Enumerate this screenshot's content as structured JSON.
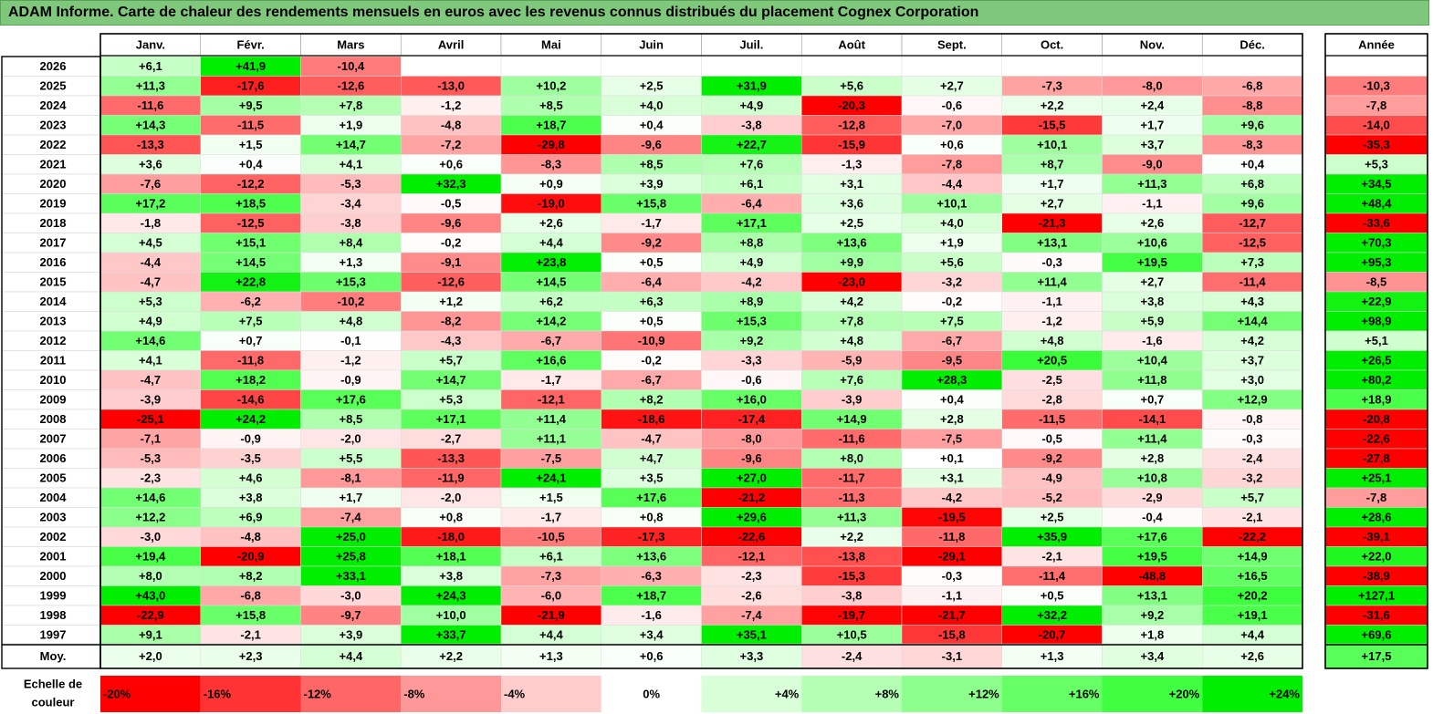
{
  "title": "ADAM Informe. Carte de chaleur des rendements mensuels en euros avec les revenus connus distribués du placement Cognex Corporation",
  "chart_data": {
    "type": "heatmap",
    "title": "ADAM Informe. Carte de chaleur des rendements mensuels en euros avec les revenus connus distribués du placement Cognex Corporation",
    "columns": [
      "Janv.",
      "Févr.",
      "Mars",
      "Avril",
      "Mai",
      "Juin",
      "Juil.",
      "Août",
      "Sept.",
      "Oct.",
      "Nov.",
      "Déc."
    ],
    "year_column_label": "Année",
    "rows": [
      {
        "label": "2026",
        "values": [
          "+6,1",
          "+41,9",
          "-10,4",
          "",
          "",
          "",
          "",
          "",
          "",
          "",
          "",
          ""
        ],
        "year": ""
      },
      {
        "label": "2025",
        "values": [
          "+11,3",
          "-17,6",
          "-12,6",
          "-13,0",
          "+10,2",
          "+2,5",
          "+31,9",
          "+5,6",
          "+2,7",
          "-7,3",
          "-8,0",
          "-6,8"
        ],
        "year": "-10,3"
      },
      {
        "label": "2024",
        "values": [
          "-11,6",
          "+9,5",
          "+7,8",
          "-1,2",
          "+8,5",
          "+4,0",
          "+4,9",
          "-20,3",
          "-0,6",
          "+2,2",
          "+2,4",
          "-8,8"
        ],
        "year": "-7,8"
      },
      {
        "label": "2023",
        "values": [
          "+14,3",
          "-11,5",
          "+1,9",
          "-4,8",
          "+18,7",
          "+0,4",
          "-3,8",
          "-12,8",
          "-7,0",
          "-15,5",
          "+1,7",
          "+9,6"
        ],
        "year": "-14,0"
      },
      {
        "label": "2022",
        "values": [
          "-13,3",
          "+1,5",
          "+14,7",
          "-7,2",
          "-29,8",
          "-9,6",
          "+22,7",
          "-15,9",
          "+0,6",
          "+10,1",
          "+3,7",
          "-8,3"
        ],
        "year": "-35,3"
      },
      {
        "label": "2021",
        "values": [
          "+3,6",
          "+0,4",
          "+4,1",
          "+0,6",
          "-8,3",
          "+8,5",
          "+7,6",
          "-1,3",
          "-7,8",
          "+8,7",
          "-9,0",
          "+0,4"
        ],
        "year": "+5,3"
      },
      {
        "label": "2020",
        "values": [
          "-7,6",
          "-12,2",
          "-5,3",
          "+32,3",
          "+0,9",
          "+3,9",
          "+6,1",
          "+3,1",
          "-4,4",
          "+1,7",
          "+11,3",
          "+6,8"
        ],
        "year": "+34,5"
      },
      {
        "label": "2019",
        "values": [
          "+17,2",
          "+18,5",
          "-3,4",
          "-0,5",
          "-19,0",
          "+15,8",
          "-6,4",
          "+3,6",
          "+10,1",
          "+2,7",
          "-1,1",
          "+9,6"
        ],
        "year": "+48,4"
      },
      {
        "label": "2018",
        "values": [
          "-1,8",
          "-12,5",
          "-3,8",
          "-9,6",
          "+2,6",
          "-1,7",
          "+17,1",
          "+2,5",
          "+4,0",
          "-21,3",
          "+2,6",
          "-12,7"
        ],
        "year": "-33,6"
      },
      {
        "label": "2017",
        "values": [
          "+4,5",
          "+15,1",
          "+8,4",
          "-0,2",
          "+4,4",
          "-9,2",
          "+8,8",
          "+13,6",
          "+1,9",
          "+13,1",
          "+10,6",
          "-12,5"
        ],
        "year": "+70,3"
      },
      {
        "label": "2016",
        "values": [
          "-4,4",
          "+14,5",
          "+1,3",
          "-9,1",
          "+23,8",
          "+0,5",
          "+4,9",
          "+9,9",
          "+5,6",
          "-0,3",
          "+19,5",
          "+7,3"
        ],
        "year": "+95,3"
      },
      {
        "label": "2015",
        "values": [
          "-4,7",
          "+22,8",
          "+15,3",
          "-12,6",
          "+14,5",
          "-6,4",
          "-4,2",
          "-23,0",
          "-3,2",
          "+11,4",
          "+2,7",
          "-11,4"
        ],
        "year": "-8,5"
      },
      {
        "label": "2014",
        "values": [
          "+5,3",
          "-6,2",
          "-10,2",
          "+1,2",
          "+6,2",
          "+6,3",
          "+8,9",
          "+4,2",
          "-0,2",
          "-1,1",
          "+3,8",
          "+4,3"
        ],
        "year": "+22,9"
      },
      {
        "label": "2013",
        "values": [
          "+4,9",
          "+7,5",
          "+4,8",
          "-8,2",
          "+14,2",
          "+0,5",
          "+15,3",
          "+7,8",
          "+7,5",
          "-1,2",
          "+5,9",
          "+14,4"
        ],
        "year": "+98,9"
      },
      {
        "label": "2012",
        "values": [
          "+14,6",
          "+0,7",
          "-0,1",
          "-4,3",
          "-6,7",
          "-10,9",
          "+9,2",
          "+4,8",
          "-6,7",
          "+4,8",
          "-1,6",
          "+4,2"
        ],
        "year": "+5,1"
      },
      {
        "label": "2011",
        "values": [
          "+4,1",
          "-11,8",
          "-1,2",
          "+5,7",
          "+16,6",
          "-0,2",
          "-3,3",
          "-5,9",
          "-9,5",
          "+20,5",
          "+10,4",
          "+3,7"
        ],
        "year": "+26,5"
      },
      {
        "label": "2010",
        "values": [
          "-4,7",
          "+18,2",
          "-0,9",
          "+14,7",
          "-1,7",
          "-6,7",
          "-0,6",
          "+7,6",
          "+28,3",
          "-2,5",
          "+11,8",
          "+3,0"
        ],
        "year": "+80,2"
      },
      {
        "label": "2009",
        "values": [
          "-3,9",
          "-14,6",
          "+17,6",
          "+5,3",
          "-12,1",
          "+8,2",
          "+16,0",
          "-3,9",
          "+0,4",
          "-2,8",
          "+0,7",
          "+12,9"
        ],
        "year": "+18,9"
      },
      {
        "label": "2008",
        "values": [
          "-25,1",
          "+24,2",
          "+8,5",
          "+17,1",
          "+11,4",
          "-18,6",
          "-17,4",
          "+14,9",
          "+2,8",
          "-11,5",
          "-14,1",
          "-0,8"
        ],
        "year": "-20,8"
      },
      {
        "label": "2007",
        "values": [
          "-7,1",
          "-0,9",
          "-2,0",
          "-2,7",
          "+11,1",
          "-4,7",
          "-8,0",
          "-11,6",
          "-7,5",
          "-0,5",
          "+11,4",
          "-0,3"
        ],
        "year": "-22,6"
      },
      {
        "label": "2006",
        "values": [
          "-5,3",
          "-3,5",
          "+5,5",
          "-13,3",
          "-7,5",
          "+4,7",
          "-9,6",
          "+8,0",
          "+0,1",
          "-9,2",
          "+2,8",
          "-2,4"
        ],
        "year": "-27,8"
      },
      {
        "label": "2005",
        "values": [
          "-2,3",
          "+4,6",
          "-8,1",
          "-11,9",
          "+24,1",
          "+3,5",
          "+27,0",
          "-11,7",
          "+3,1",
          "-4,9",
          "+10,8",
          "-3,2"
        ],
        "year": "+25,1"
      },
      {
        "label": "2004",
        "values": [
          "+14,6",
          "+3,8",
          "+1,7",
          "-2,0",
          "+1,5",
          "+17,6",
          "-21,2",
          "-11,3",
          "-4,2",
          "-5,2",
          "-2,9",
          "+5,7"
        ],
        "year": "-7,8"
      },
      {
        "label": "2003",
        "values": [
          "+12,2",
          "+6,9",
          "-7,4",
          "+0,8",
          "-1,7",
          "+0,8",
          "+29,6",
          "+11,3",
          "-19,5",
          "+2,5",
          "-0,4",
          "-2,1"
        ],
        "year": "+28,6"
      },
      {
        "label": "2002",
        "values": [
          "-3,0",
          "-4,8",
          "+25,0",
          "-18,0",
          "-10,5",
          "-17,3",
          "-22,6",
          "+2,2",
          "-11,8",
          "+35,9",
          "+17,6",
          "-22,2"
        ],
        "year": "-39,1"
      },
      {
        "label": "2001",
        "values": [
          "+19,4",
          "-20,9",
          "+25,8",
          "+18,1",
          "+6,1",
          "+13,6",
          "-12,1",
          "-13,8",
          "-29,1",
          "-2,1",
          "+19,5",
          "+14,9"
        ],
        "year": "+22,0"
      },
      {
        "label": "2000",
        "values": [
          "+8,0",
          "+8,2",
          "+33,1",
          "+3,8",
          "-7,3",
          "-6,3",
          "-2,3",
          "-15,3",
          "-0,3",
          "-11,4",
          "-48,8",
          "+16,5"
        ],
        "year": "-38,9"
      },
      {
        "label": "1999",
        "values": [
          "+43,0",
          "-6,8",
          "-3,0",
          "+24,3",
          "-6,0",
          "+18,7",
          "-2,6",
          "-3,8",
          "-1,1",
          "+0,5",
          "+13,1",
          "+20,2"
        ],
        "year": "+127,1"
      },
      {
        "label": "1998",
        "values": [
          "-22,9",
          "+15,8",
          "-9,7",
          "+10,0",
          "-21,9",
          "-1,6",
          "-7,4",
          "-19,7",
          "-21,7",
          "+32,2",
          "+9,2",
          "+19,1"
        ],
        "year": "-31,6"
      },
      {
        "label": "1997",
        "values": [
          "+9,1",
          "-2,1",
          "+3,9",
          "+33,7",
          "+4,4",
          "+3,4",
          "+35,1",
          "+10,5",
          "-15,8",
          "-20,7",
          "+1,8",
          "+4,4"
        ],
        "year": "+69,6"
      }
    ],
    "average": {
      "label": "Moy.",
      "values": [
        "+2,0",
        "+2,3",
        "+4,4",
        "+2,2",
        "+1,3",
        "+0,6",
        "+3,3",
        "-2,4",
        "-3,1",
        "+1,3",
        "+3,4",
        "+2,6"
      ],
      "year": "+17,5"
    },
    "scale": {
      "label_line1": "Echelle de",
      "label_line2": "couleur",
      "stops": [
        {
          "label": "-20%",
          "value": -20,
          "color": "#ff0000"
        },
        {
          "label": "-16%",
          "value": -16,
          "color": "#ff3333"
        },
        {
          "label": "-12%",
          "value": -12,
          "color": "#ff6666"
        },
        {
          "label": "-8%",
          "value": -8,
          "color": "#ff9999"
        },
        {
          "label": "-4%",
          "value": -4,
          "color": "#ffcccc"
        },
        {
          "label": "0%",
          "value": 0,
          "color": "#ffffff"
        },
        {
          "label": "+4%",
          "value": 4,
          "color": "#d9ffd9"
        },
        {
          "label": "+8%",
          "value": 8,
          "color": "#b3ffb3"
        },
        {
          "label": "+12%",
          "value": 12,
          "color": "#8cff8c"
        },
        {
          "label": "+16%",
          "value": 16,
          "color": "#66ff66"
        },
        {
          "label": "+20%",
          "value": 20,
          "color": "#40ff40"
        },
        {
          "label": "+24%",
          "value": 24,
          "color": "#00ee00"
        }
      ]
    },
    "colors": {
      "title_bar": "#7fc77b",
      "positive_max": "#00ee00",
      "negative_max": "#ff0000",
      "neutral": "#ffffff"
    }
  }
}
